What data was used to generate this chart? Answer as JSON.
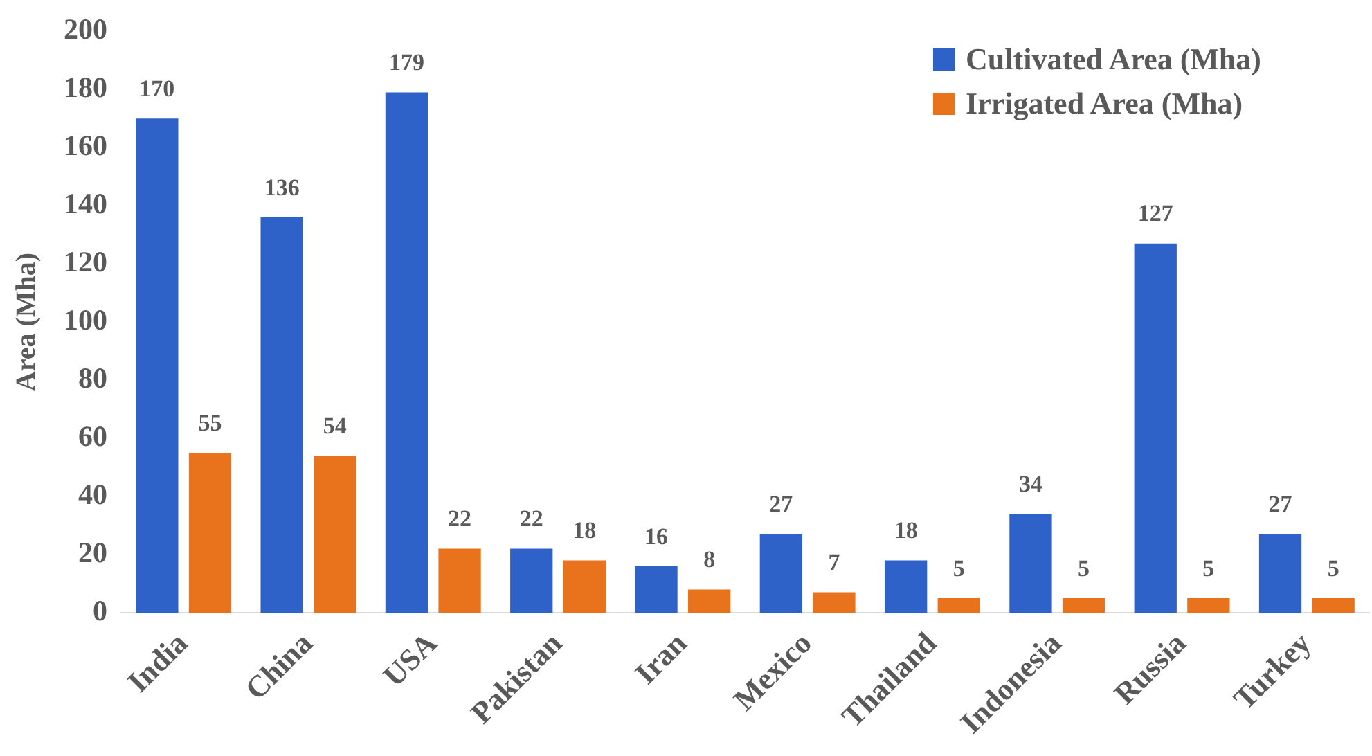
{
  "chart_data": {
    "type": "bar",
    "ylabel": "Area (Mha)",
    "categories": [
      "India",
      "China",
      "USA",
      "Pakistan",
      "Iran",
      "Mexico",
      "Thailand",
      "Indonesia",
      "Russia",
      "Turkey"
    ],
    "series": [
      {
        "name": "Cultivated Area (Mha)",
        "color": "#2e62c8",
        "values": [
          170,
          136,
          179,
          22,
          16,
          27,
          18,
          34,
          127,
          27
        ]
      },
      {
        "name": "Irrigated Area (Mha)",
        "color": "#e8731c",
        "values": [
          55,
          54,
          22,
          18,
          8,
          7,
          5,
          5,
          5,
          5
        ]
      }
    ],
    "ylim": [
      0,
      200
    ],
    "yticks": [
      0,
      20,
      40,
      60,
      80,
      100,
      120,
      140,
      160,
      180,
      200
    ],
    "grid": false,
    "legend": "top right",
    "data_labels": true
  }
}
